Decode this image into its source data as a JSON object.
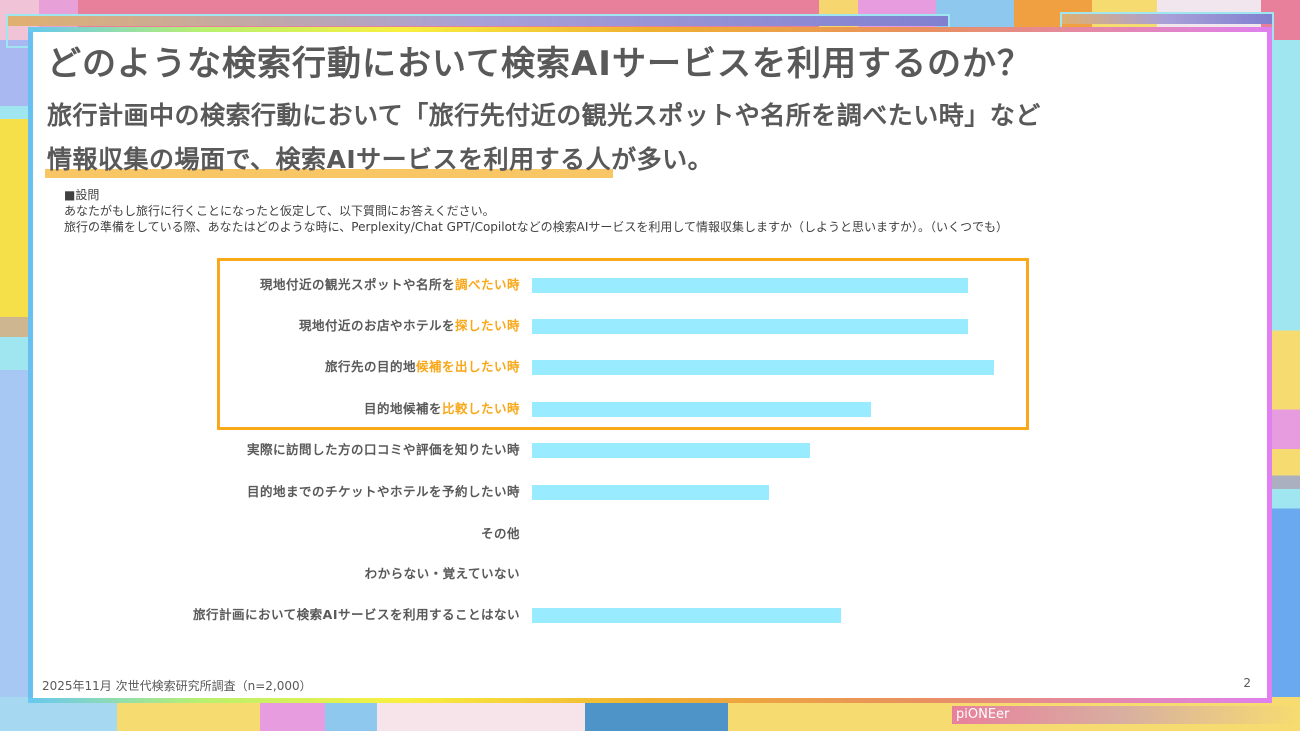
{
  "slide": {
    "title": "どのような検索行動において検索AIサービスを利用するのか？",
    "lead_line1": "旅行計画中の検索行動において「旅行先付近の観光スポットや名所を調べたい時」など",
    "lead_line2_highlight": "情報収集の場面で、検索AIサービスを利用する人",
    "lead_line2_rest": "が多い。",
    "question_heading": "■設問",
    "question_line1": "あなたがもし旅行に行くことになったと仮定して、以下質問にお答えください。",
    "question_line2": "旅行の準備をしている際、あなたはどのような時に、Perplexity/Chat GPT/Copilotなどの検索AIサービスを利用して情報収集しますか（しようと思いますか）。（いくつでも）",
    "footer_note": "2025年11月 次世代検索研究所調査（n=2,000）",
    "page_number": "2",
    "brand_text": "piONEer"
  },
  "colors": {
    "bar": "#99ebff",
    "highlight_box": "#f8a818",
    "highlight_text": "#f8a818",
    "text": "#595959",
    "underline": "#f8b840"
  },
  "chart_data": {
    "type": "bar",
    "orientation": "horizontal",
    "title": "",
    "xlabel": "",
    "ylabel": "",
    "value_unit": "relative bar length (no axis or data labels shown; px lengths, max = 462)",
    "grid": false,
    "legend": null,
    "categories": [
      "現地付近の観光スポットや名所を調べたい時",
      "現地付近のお店やホテルを探したい時",
      "旅行先の目的地候補を出したい時",
      "目的地候補を比較したい時",
      "実際に訪問した方の口コミや評価を知りたい時",
      "目的地までのチケットやホテルを予約したい時",
      "その他",
      "わからない・覚えていない",
      "旅行計画において検索AIサービスを利用することはない"
    ],
    "values": [
      436,
      436,
      462,
      339,
      278,
      237,
      0,
      0,
      309
    ],
    "label_parts": [
      {
        "plain": "現地付近の観光スポットや名所を",
        "hl": "調べたい時"
      },
      {
        "plain": "現地付近のお店やホテルを",
        "hl": "探したい時"
      },
      {
        "plain": "旅行先の目的地",
        "hl": "候補を出したい時"
      },
      {
        "plain": "目的地候補を",
        "hl": "比較したい時"
      },
      {
        "plain": "実際に訪問した方の口コミや評価を知りたい時",
        "hl": ""
      },
      {
        "plain": "目的地までのチケットやホテルを予約したい時",
        "hl": ""
      },
      {
        "plain": "その他",
        "hl": ""
      },
      {
        "plain": "わからない・覚えていない",
        "hl": ""
      },
      {
        "plain": "旅行計画において検索AIサービスを利用することはない",
        "hl": ""
      }
    ],
    "highlighted_categories": [
      0,
      1,
      2,
      3
    ]
  }
}
